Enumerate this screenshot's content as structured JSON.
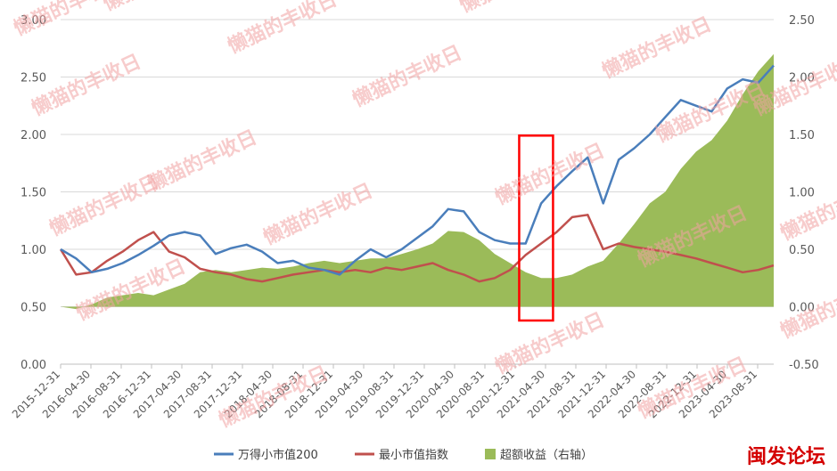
{
  "chart_data": {
    "type": "line+area",
    "left_axis": {
      "ticks": [
        "0.00",
        "0.50",
        "1.00",
        "1.50",
        "2.00",
        "2.50",
        "3.00"
      ],
      "ylim": [
        0,
        3
      ]
    },
    "right_axis": {
      "ticks": [
        "-0.50",
        "0.00",
        "0.50",
        "1.00",
        "1.50",
        "2.00",
        "2.50"
      ],
      "ylim": [
        -0.5,
        2.5
      ]
    },
    "x_ticks": [
      "2015-12-31",
      "2016-04-30",
      "2016-08-31",
      "2016-12-31",
      "2017-04-30",
      "2017-08-31",
      "2017-12-31",
      "2018-04-30",
      "2018-08-31",
      "2018-12-31",
      "2019-04-30",
      "2019-08-31",
      "2019-12-31",
      "2020-04-30",
      "2020-08-31",
      "2020-12-31",
      "2021-04-30",
      "2021-08-31",
      "2021-12-31",
      "2022-04-30",
      "2022-08-31",
      "2022-12-31",
      "2023-04-30",
      "2023-08-31"
    ],
    "series": [
      {
        "name": "万得小市值200",
        "axis": "left",
        "color": "#4a7ebb",
        "values": [
          1.0,
          0.92,
          0.8,
          0.83,
          0.88,
          0.95,
          1.03,
          1.12,
          1.15,
          1.12,
          0.96,
          1.01,
          1.04,
          0.98,
          0.88,
          0.9,
          0.84,
          0.82,
          0.78,
          0.9,
          1.0,
          0.93,
          1.0,
          1.1,
          1.2,
          1.35,
          1.33,
          1.15,
          1.08,
          1.05,
          1.05,
          1.4,
          1.55,
          1.68,
          1.8,
          1.4,
          1.78,
          1.88,
          2.0,
          2.15,
          2.3,
          2.25,
          2.2,
          2.4,
          2.48,
          2.45,
          2.6
        ]
      },
      {
        "name": "最小市值指数",
        "axis": "left",
        "color": "#c0504d",
        "values": [
          1.0,
          0.78,
          0.8,
          0.9,
          0.98,
          1.08,
          1.15,
          0.98,
          0.93,
          0.83,
          0.8,
          0.78,
          0.74,
          0.72,
          0.75,
          0.78,
          0.8,
          0.82,
          0.8,
          0.82,
          0.8,
          0.84,
          0.82,
          0.85,
          0.88,
          0.82,
          0.78,
          0.72,
          0.75,
          0.82,
          0.95,
          1.05,
          1.15,
          1.28,
          1.3,
          1.0,
          1.05,
          1.02,
          1.0,
          0.98,
          0.95,
          0.92,
          0.88,
          0.84,
          0.8,
          0.82,
          0.86
        ]
      },
      {
        "name": "超额收益（右轴）",
        "axis": "right",
        "color": "#9bbb59",
        "values": [
          0.0,
          -0.02,
          0.02,
          0.08,
          0.1,
          0.12,
          0.1,
          0.15,
          0.2,
          0.3,
          0.32,
          0.3,
          0.32,
          0.34,
          0.33,
          0.35,
          0.38,
          0.4,
          0.38,
          0.4,
          0.42,
          0.42,
          0.46,
          0.5,
          0.55,
          0.66,
          0.65,
          0.58,
          0.46,
          0.38,
          0.3,
          0.25,
          0.25,
          0.28,
          0.35,
          0.4,
          0.55,
          0.72,
          0.9,
          1.0,
          1.2,
          1.35,
          1.45,
          1.62,
          1.85,
          2.05,
          2.2
        ]
      }
    ],
    "highlight_box": {
      "from": "2021-01-15",
      "to": "2021-05-31",
      "range_right_axis": [
        -0.12,
        1.49
      ],
      "color": "#ff0000"
    },
    "grid": true,
    "legend_position": "bottom"
  },
  "watermark": "懒猫的丰收日",
  "brand_label": "闽发论坛"
}
